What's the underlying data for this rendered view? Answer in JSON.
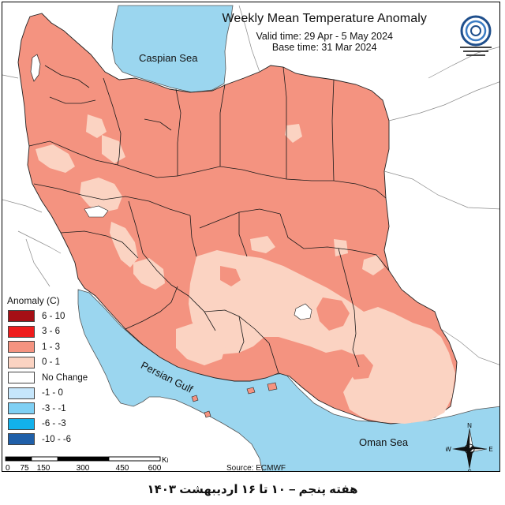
{
  "map": {
    "title": "Weekly Mean Temperature Anomaly",
    "valid_time": "Valid time: 29 Apr - 5 May 2024",
    "base_time": "Base time: 31 Mar 2024",
    "labels": {
      "caspian": "Caspian Sea",
      "gulf": "Persian Gulf",
      "oman": "Oman Sea"
    },
    "source": "Source: ECMWF",
    "caption": "هفته پنجم – ۱۰ تا ۱۶ اردیبهشت ۱۴۰۳"
  },
  "legend": {
    "title": "Anomaly (C)",
    "items": [
      {
        "label": "6 - 10",
        "color": "#a50f15"
      },
      {
        "label": "3 - 6",
        "color": "#ef1c1c"
      },
      {
        "label": "1 - 3",
        "color": "#f49380"
      },
      {
        "label": "0 - 1",
        "color": "#fbd3c2"
      },
      {
        "label": "No Change",
        "color": "#ffffff"
      },
      {
        "label": "-1 - 0",
        "color": "#c6e6fb"
      },
      {
        "label": "-3 - -1",
        "color": "#7fd0f4"
      },
      {
        "label": "-6 - -3",
        "color": "#12b1eb"
      },
      {
        "label": "-10 - -6",
        "color": "#1f5fa8"
      }
    ]
  },
  "scale": {
    "ticks": [
      "0",
      "75",
      "150",
      "300",
      "450",
      "600"
    ],
    "unit": "Km"
  },
  "compass": {
    "n": "N",
    "s": "S",
    "e": "E",
    "w": "W"
  },
  "colors": {
    "sea": "#9bd6ef",
    "land_outside": "#ffffff",
    "anomaly_1_3": "#f49380",
    "anomaly_0_1": "#fbd3c2",
    "no_change": "#ffffff"
  }
}
